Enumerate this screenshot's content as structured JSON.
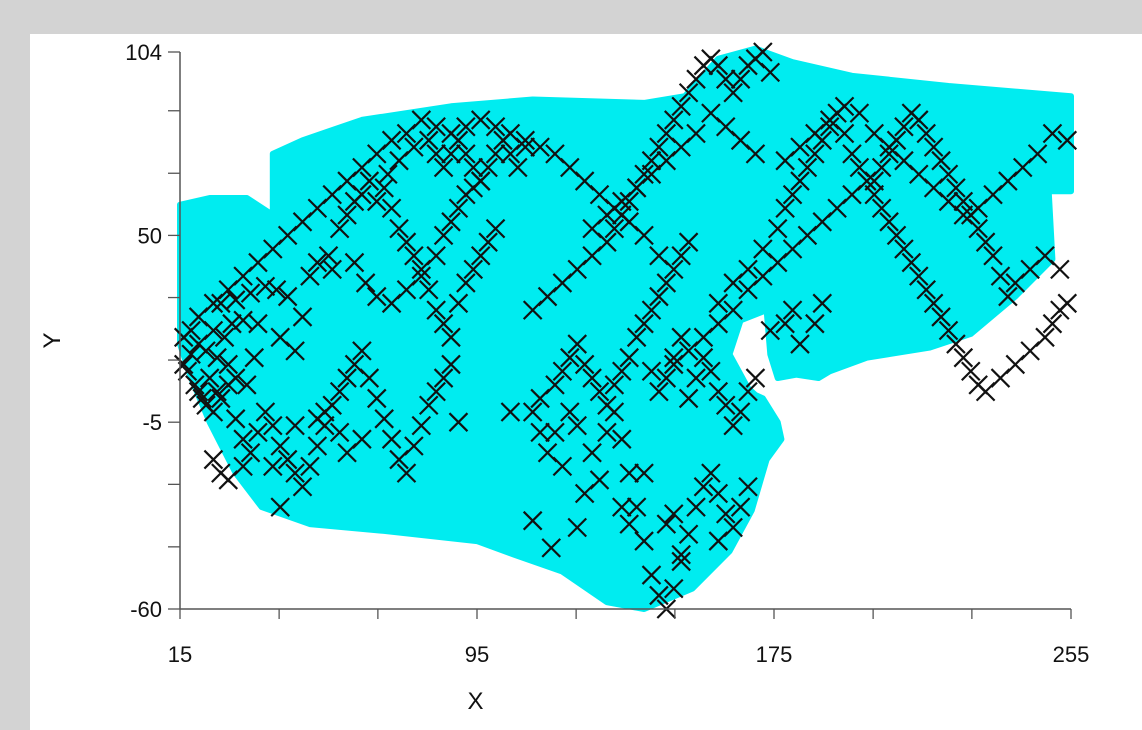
{
  "colors": {
    "background": "#d3d3d3",
    "panel": "#ffffff",
    "region_fill": "#00ecf0",
    "marker": "#111111",
    "axis": "#555555"
  },
  "chart_data": {
    "type": "scatter",
    "title": "",
    "xlabel": "X",
    "ylabel": "Y",
    "xlim": [
      15,
      255
    ],
    "ylim": [
      -60,
      104
    ],
    "x_tick_labels": [
      "15",
      "95",
      "175",
      "255"
    ],
    "x_tick_values": [
      15,
      95,
      175,
      255
    ],
    "x_minor_ticks": [
      15,
      41.7,
      68.3,
      95,
      121.7,
      148.3,
      175,
      201.7,
      228.3,
      255
    ],
    "y_tick_labels": [
      "104",
      "50",
      "-5",
      "-60"
    ],
    "y_tick_values": [
      104,
      50,
      -5,
      -60
    ],
    "y_minor_ticks": [
      -60,
      -41.7,
      -23.3,
      -5,
      13.3,
      31.7,
      50,
      68.3,
      86.7,
      104
    ],
    "grid": false,
    "marker": "x",
    "shaded_region": {
      "name": "",
      "polygon": [
        [
          15,
          59
        ],
        [
          23,
          61
        ],
        [
          33,
          61
        ],
        [
          40,
          56
        ],
        [
          40,
          74
        ],
        [
          48,
          78
        ],
        [
          64,
          84
        ],
        [
          88,
          88
        ],
        [
          110,
          90
        ],
        [
          140,
          89
        ],
        [
          151,
          91
        ],
        [
          160,
          102
        ],
        [
          170,
          105
        ],
        [
          180,
          101
        ],
        [
          196,
          97
        ],
        [
          222,
          94
        ],
        [
          255,
          91
        ],
        [
          255,
          63
        ],
        [
          249,
          63
        ],
        [
          250,
          43
        ],
        [
          240,
          32
        ],
        [
          228,
          21
        ],
        [
          217,
          17
        ],
        [
          200,
          14
        ],
        [
          190,
          10
        ],
        [
          187,
          8
        ],
        [
          181,
          9
        ],
        [
          176,
          8
        ],
        [
          174,
          15
        ],
        [
          173,
          28
        ],
        [
          166,
          25
        ],
        [
          163,
          15
        ],
        [
          168,
          5
        ],
        [
          170,
          3
        ],
        [
          172,
          2
        ],
        [
          176,
          -5
        ],
        [
          177,
          -10
        ],
        [
          173,
          -16
        ],
        [
          169,
          -31
        ],
        [
          163,
          -43
        ],
        [
          153,
          -54
        ],
        [
          140,
          -60
        ],
        [
          130,
          -58
        ],
        [
          118,
          -49
        ],
        [
          105,
          -44
        ],
        [
          95,
          -40
        ],
        [
          70,
          -37
        ],
        [
          50,
          -35
        ],
        [
          37,
          -30
        ],
        [
          30,
          -20
        ],
        [
          23,
          -5
        ],
        [
          18,
          8
        ],
        [
          15,
          18
        ]
      ]
    },
    "points": [
      [
        16,
        12
      ],
      [
        18,
        15
      ],
      [
        20,
        18
      ],
      [
        22,
        16
      ],
      [
        24,
        22
      ],
      [
        25,
        14
      ],
      [
        27,
        20
      ],
      [
        28,
        12
      ],
      [
        29,
        24
      ],
      [
        30,
        8
      ],
      [
        32,
        25
      ],
      [
        33,
        6
      ],
      [
        35,
        14
      ],
      [
        26,
        30
      ],
      [
        30,
        31
      ],
      [
        34,
        33
      ],
      [
        38,
        35
      ],
      [
        41,
        34
      ],
      [
        44,
        32
      ],
      [
        36,
        24
      ],
      [
        42,
        20
      ],
      [
        46,
        16
      ],
      [
        48,
        26
      ],
      [
        50,
        38
      ],
      [
        52,
        42
      ],
      [
        55,
        44
      ],
      [
        56,
        40
      ],
      [
        58,
        52
      ],
      [
        60,
        56
      ],
      [
        62,
        60
      ],
      [
        64,
        62
      ],
      [
        66,
        66
      ],
      [
        68,
        60
      ],
      [
        70,
        64
      ],
      [
        72,
        58
      ],
      [
        74,
        52
      ],
      [
        76,
        48
      ],
      [
        78,
        44
      ],
      [
        80,
        40
      ],
      [
        82,
        34
      ],
      [
        84,
        28
      ],
      [
        86,
        24
      ],
      [
        88,
        20
      ],
      [
        90,
        30
      ],
      [
        92,
        36
      ],
      [
        94,
        40
      ],
      [
        96,
        44
      ],
      [
        98,
        48
      ],
      [
        100,
        52
      ],
      [
        62,
        42
      ],
      [
        65,
        36
      ],
      [
        68,
        32
      ],
      [
        72,
        30
      ],
      [
        76,
        34
      ],
      [
        80,
        38
      ],
      [
        84,
        44
      ],
      [
        86,
        50
      ],
      [
        88,
        54
      ],
      [
        90,
        58
      ],
      [
        92,
        62
      ],
      [
        94,
        64
      ],
      [
        96,
        66
      ],
      [
        98,
        70
      ],
      [
        100,
        74
      ],
      [
        102,
        78
      ],
      [
        104,
        74
      ],
      [
        106,
        70
      ],
      [
        108,
        76
      ],
      [
        82,
        78
      ],
      [
        84,
        74
      ],
      [
        86,
        70
      ],
      [
        88,
        74
      ],
      [
        90,
        78
      ],
      [
        92,
        74
      ],
      [
        94,
        70
      ],
      [
        96,
        66
      ],
      [
        71,
        68
      ],
      [
        74,
        72
      ],
      [
        78,
        76
      ],
      [
        20,
        4
      ],
      [
        22,
        0
      ],
      [
        24,
        -2
      ],
      [
        26,
        2
      ],
      [
        28,
        6
      ],
      [
        30,
        -4
      ],
      [
        32,
        -10
      ],
      [
        34,
        -14
      ],
      [
        36,
        -8
      ],
      [
        38,
        -2
      ],
      [
        40,
        -6
      ],
      [
        42,
        -12
      ],
      [
        44,
        -16
      ],
      [
        46,
        -20
      ],
      [
        48,
        -24
      ],
      [
        50,
        -18
      ],
      [
        52,
        -12
      ],
      [
        54,
        -6
      ],
      [
        56,
        0
      ],
      [
        58,
        4
      ],
      [
        60,
        8
      ],
      [
        62,
        12
      ],
      [
        64,
        16
      ],
      [
        66,
        8
      ],
      [
        68,
        2
      ],
      [
        70,
        -4
      ],
      [
        72,
        -10
      ],
      [
        74,
        -16
      ],
      [
        76,
        -20
      ],
      [
        78,
        -12
      ],
      [
        80,
        -6
      ],
      [
        82,
        0
      ],
      [
        84,
        4
      ],
      [
        86,
        8
      ],
      [
        88,
        12
      ],
      [
        24,
        -16
      ],
      [
        26,
        -20
      ],
      [
        28,
        -22
      ],
      [
        32,
        -18
      ],
      [
        40,
        -18
      ],
      [
        46,
        -6
      ],
      [
        52,
        -4
      ],
      [
        58,
        -8
      ],
      [
        64,
        -10
      ],
      [
        42,
        -30
      ],
      [
        54,
        -2
      ],
      [
        60,
        -14
      ],
      [
        90,
        -5
      ],
      [
        104,
        -2
      ],
      [
        110,
        -2
      ],
      [
        112,
        -8
      ],
      [
        114,
        -14
      ],
      [
        116,
        -8
      ],
      [
        118,
        -18
      ],
      [
        120,
        -2
      ],
      [
        122,
        -6
      ],
      [
        124,
        -26
      ],
      [
        126,
        -14
      ],
      [
        128,
        -22
      ],
      [
        130,
        -8
      ],
      [
        132,
        -2
      ],
      [
        134,
        -10
      ],
      [
        136,
        -20
      ],
      [
        138,
        -30
      ],
      [
        140,
        -40
      ],
      [
        142,
        -50
      ],
      [
        144,
        -56
      ],
      [
        146,
        -60
      ],
      [
        148,
        -54
      ],
      [
        150,
        -46
      ],
      [
        152,
        -38
      ],
      [
        154,
        -30
      ],
      [
        156,
        -24
      ],
      [
        158,
        -20
      ],
      [
        160,
        -26
      ],
      [
        162,
        -32
      ],
      [
        164,
        -36
      ],
      [
        166,
        -30
      ],
      [
        168,
        -24
      ],
      [
        160,
        -40
      ],
      [
        148,
        -32
      ],
      [
        140,
        -20
      ],
      [
        134,
        -30
      ],
      [
        110,
        -34
      ],
      [
        115,
        -42
      ],
      [
        122,
        -36
      ],
      [
        136,
        -35
      ],
      [
        146,
        -35
      ],
      [
        150,
        -44
      ],
      [
        112,
        2
      ],
      [
        116,
        6
      ],
      [
        118,
        10
      ],
      [
        120,
        14
      ],
      [
        122,
        18
      ],
      [
        124,
        12
      ],
      [
        126,
        8
      ],
      [
        128,
        4
      ],
      [
        130,
        0
      ],
      [
        132,
        6
      ],
      [
        134,
        10
      ],
      [
        136,
        14
      ],
      [
        138,
        20
      ],
      [
        140,
        24
      ],
      [
        142,
        28
      ],
      [
        144,
        32
      ],
      [
        146,
        36
      ],
      [
        148,
        40
      ],
      [
        150,
        44
      ],
      [
        152,
        48
      ],
      [
        110,
        28
      ],
      [
        114,
        32
      ],
      [
        118,
        36
      ],
      [
        122,
        40
      ],
      [
        126,
        44
      ],
      [
        130,
        48
      ],
      [
        132,
        52
      ],
      [
        134,
        56
      ],
      [
        136,
        60
      ],
      [
        138,
        64
      ],
      [
        140,
        68
      ],
      [
        142,
        72
      ],
      [
        144,
        76
      ],
      [
        146,
        80
      ],
      [
        148,
        84
      ],
      [
        150,
        88
      ],
      [
        152,
        92
      ],
      [
        154,
        96
      ],
      [
        156,
        100
      ],
      [
        158,
        102
      ],
      [
        160,
        100
      ],
      [
        162,
        96
      ],
      [
        164,
        92
      ],
      [
        166,
        96
      ],
      [
        168,
        100
      ],
      [
        170,
        102
      ],
      [
        172,
        104
      ],
      [
        174,
        98
      ],
      [
        150,
        20
      ],
      [
        148,
        14
      ],
      [
        146,
        8
      ],
      [
        144,
        4
      ],
      [
        142,
        10
      ],
      [
        152,
        2
      ],
      [
        154,
        8
      ],
      [
        156,
        14
      ],
      [
        158,
        10
      ],
      [
        160,
        4
      ],
      [
        162,
        0
      ],
      [
        164,
        -6
      ],
      [
        166,
        -2
      ],
      [
        168,
        4
      ],
      [
        170,
        8
      ],
      [
        174,
        22
      ],
      [
        178,
        24
      ],
      [
        180,
        28
      ],
      [
        182,
        18
      ],
      [
        186,
        24
      ],
      [
        188,
        30
      ],
      [
        160,
        30
      ],
      [
        164,
        36
      ],
      [
        168,
        40
      ],
      [
        172,
        46
      ],
      [
        176,
        52
      ],
      [
        178,
        58
      ],
      [
        180,
        62
      ],
      [
        182,
        66
      ],
      [
        184,
        70
      ],
      [
        186,
        74
      ],
      [
        188,
        78
      ],
      [
        190,
        82
      ],
      [
        192,
        86
      ],
      [
        194,
        80
      ],
      [
        196,
        74
      ],
      [
        198,
        70
      ],
      [
        200,
        66
      ],
      [
        202,
        62
      ],
      [
        204,
        58
      ],
      [
        206,
        54
      ],
      [
        208,
        50
      ],
      [
        210,
        46
      ],
      [
        212,
        42
      ],
      [
        214,
        38
      ],
      [
        216,
        34
      ],
      [
        218,
        30
      ],
      [
        220,
        26
      ],
      [
        222,
        22
      ],
      [
        224,
        18
      ],
      [
        226,
        14
      ],
      [
        228,
        10
      ],
      [
        230,
        6
      ],
      [
        232,
        4
      ],
      [
        236,
        8
      ],
      [
        240,
        12
      ],
      [
        244,
        16
      ],
      [
        248,
        20
      ],
      [
        250,
        24
      ],
      [
        252,
        28
      ],
      [
        254,
        30
      ],
      [
        252,
        40
      ],
      [
        248,
        44
      ],
      [
        244,
        40
      ],
      [
        240,
        36
      ],
      [
        238,
        32
      ],
      [
        236,
        38
      ],
      [
        234,
        44
      ],
      [
        232,
        48
      ],
      [
        230,
        52
      ],
      [
        228,
        56
      ],
      [
        226,
        60
      ],
      [
        224,
        64
      ],
      [
        222,
        68
      ],
      [
        220,
        72
      ],
      [
        218,
        76
      ],
      [
        216,
        80
      ],
      [
        214,
        84
      ],
      [
        212,
        86
      ],
      [
        210,
        82
      ],
      [
        208,
        78
      ],
      [
        206,
        74
      ],
      [
        204,
        70
      ],
      [
        202,
        66
      ],
      [
        196,
        62
      ],
      [
        192,
        58
      ],
      [
        188,
        54
      ],
      [
        184,
        50
      ],
      [
        180,
        46
      ],
      [
        176,
        42
      ],
      [
        172,
        38
      ],
      [
        168,
        34
      ],
      [
        164,
        28
      ],
      [
        160,
        24
      ],
      [
        156,
        20
      ],
      [
        152,
        16
      ],
      [
        148,
        12
      ],
      [
        144,
        44
      ],
      [
        140,
        50
      ],
      [
        136,
        54
      ],
      [
        132,
        58
      ],
      [
        128,
        62
      ],
      [
        124,
        66
      ],
      [
        120,
        70
      ],
      [
        116,
        74
      ],
      [
        112,
        76
      ],
      [
        108,
        78
      ],
      [
        104,
        80
      ],
      [
        100,
        82
      ],
      [
        96,
        84
      ],
      [
        92,
        82
      ],
      [
        88,
        80
      ],
      [
        84,
        82
      ],
      [
        80,
        84
      ],
      [
        76,
        80
      ],
      [
        72,
        78
      ],
      [
        68,
        74
      ],
      [
        64,
        70
      ],
      [
        60,
        66
      ],
      [
        56,
        62
      ],
      [
        52,
        58
      ],
      [
        48,
        54
      ],
      [
        44,
        50
      ],
      [
        40,
        46
      ],
      [
        36,
        42
      ],
      [
        32,
        38
      ],
      [
        28,
        34
      ],
      [
        24,
        30
      ],
      [
        20,
        26
      ],
      [
        18,
        22
      ],
      [
        16,
        20
      ],
      [
        17,
        10
      ],
      [
        19,
        6
      ],
      [
        21,
        2
      ],
      [
        23,
        8
      ],
      [
        25,
        4
      ],
      [
        178,
        72
      ],
      [
        182,
        76
      ],
      [
        186,
        80
      ],
      [
        190,
        84
      ],
      [
        194,
        88
      ],
      [
        198,
        86
      ],
      [
        202,
        80
      ],
      [
        206,
        76
      ],
      [
        210,
        72
      ],
      [
        214,
        68
      ],
      [
        218,
        64
      ],
      [
        222,
        60
      ],
      [
        226,
        56
      ],
      [
        230,
        58
      ],
      [
        234,
        62
      ],
      [
        238,
        66
      ],
      [
        242,
        70
      ],
      [
        246,
        74
      ],
      [
        250,
        80
      ],
      [
        254,
        78
      ],
      [
        170,
        74
      ],
      [
        166,
        78
      ],
      [
        162,
        82
      ],
      [
        158,
        86
      ],
      [
        154,
        80
      ],
      [
        150,
        76
      ],
      [
        146,
        72
      ],
      [
        142,
        68
      ],
      [
        138,
        64
      ],
      [
        134,
        60
      ],
      [
        130,
        56
      ],
      [
        126,
        52
      ]
    ]
  }
}
